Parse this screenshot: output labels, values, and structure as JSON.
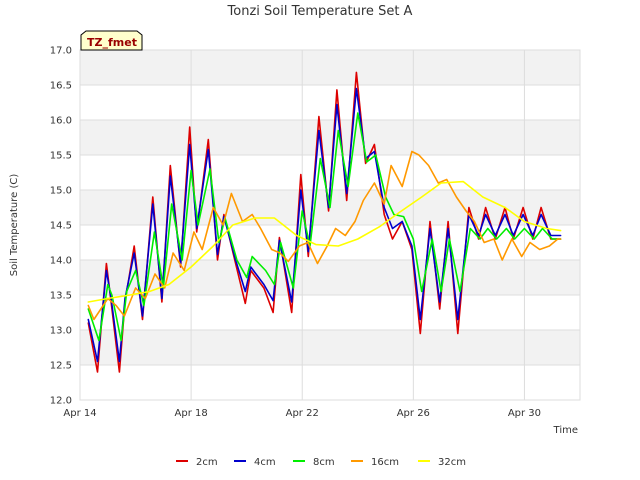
{
  "chart_data": {
    "type": "line",
    "title": "Tonzi Soil Temperature Set A",
    "xlabel": "Time",
    "ylabel": "Soil Temperature (C)",
    "badge": "TZ_fmet",
    "xlim": [
      0,
      18
    ],
    "ylim": [
      12.0,
      17.0
    ],
    "xticks": [
      {
        "x": 0,
        "label": "Apr 14"
      },
      {
        "x": 4,
        "label": "Apr 18"
      },
      {
        "x": 8,
        "label": "Apr 22"
      },
      {
        "x": 12,
        "label": "Apr 26"
      },
      {
        "x": 16,
        "label": "Apr 30"
      }
    ],
    "yticks": [
      "12.0",
      "12.5",
      "13.0",
      "13.5",
      "14.0",
      "14.5",
      "15.0",
      "15.5",
      "16.0",
      "16.5",
      "17.0"
    ],
    "grid": true,
    "legend_position": "bottom",
    "series": [
      {
        "name": "2cm",
        "color": "#dd0000",
        "x": [
          0.3,
          0.63,
          0.95,
          1.12,
          1.42,
          1.62,
          1.95,
          2.25,
          2.62,
          2.95,
          3.25,
          3.62,
          3.95,
          4.2,
          4.62,
          4.95,
          5.18,
          5.6,
          5.95,
          6.15,
          6.62,
          6.95,
          7.18,
          7.62,
          7.95,
          8.22,
          8.6,
          8.95,
          9.25,
          9.6,
          9.95,
          10.28,
          10.6,
          10.95,
          11.25,
          11.6,
          11.95,
          12.25,
          12.6,
          12.95,
          13.25,
          13.6,
          14.0,
          14.35,
          14.6,
          14.95,
          15.3,
          15.6,
          15.95,
          16.3,
          16.6,
          16.95,
          17.3
        ],
        "y": [
          13.1,
          12.4,
          13.95,
          13.4,
          12.4,
          13.4,
          14.2,
          13.15,
          14.9,
          13.4,
          15.35,
          13.9,
          15.9,
          14.4,
          15.72,
          14.0,
          14.65,
          13.95,
          13.38,
          13.85,
          13.6,
          13.25,
          14.32,
          13.25,
          15.22,
          14.05,
          16.05,
          14.7,
          16.43,
          14.85,
          16.68,
          15.38,
          15.65,
          14.65,
          14.3,
          14.55,
          14.15,
          12.95,
          14.55,
          13.3,
          14.55,
          12.95,
          14.75,
          14.3,
          14.75,
          14.3,
          14.75,
          14.3,
          14.75,
          14.3,
          14.75,
          14.3,
          14.3
        ]
      },
      {
        "name": "4cm",
        "color": "#0000cc",
        "x": [
          0.3,
          0.63,
          0.95,
          1.12,
          1.42,
          1.62,
          1.95,
          2.25,
          2.62,
          2.95,
          3.25,
          3.62,
          3.95,
          4.2,
          4.62,
          4.95,
          5.18,
          5.6,
          5.95,
          6.15,
          6.62,
          6.95,
          7.18,
          7.62,
          7.95,
          8.22,
          8.6,
          8.95,
          9.25,
          9.6,
          9.95,
          10.28,
          10.6,
          10.95,
          11.25,
          11.6,
          11.95,
          12.25,
          12.6,
          12.95,
          13.25,
          13.6,
          14.0,
          14.35,
          14.6,
          14.95,
          15.3,
          15.6,
          15.95,
          16.3,
          16.6,
          16.95,
          17.3
        ],
        "y": [
          13.15,
          12.55,
          13.85,
          13.45,
          12.55,
          13.45,
          14.1,
          13.2,
          14.8,
          13.45,
          15.2,
          13.95,
          15.65,
          14.45,
          15.58,
          14.08,
          14.62,
          14.0,
          13.55,
          13.9,
          13.65,
          13.42,
          14.28,
          13.4,
          15.0,
          14.12,
          15.85,
          14.75,
          16.22,
          14.95,
          16.45,
          15.45,
          15.55,
          14.75,
          14.45,
          14.55,
          14.2,
          13.15,
          14.45,
          13.4,
          14.45,
          13.15,
          14.65,
          14.35,
          14.65,
          14.35,
          14.65,
          14.35,
          14.65,
          14.35,
          14.65,
          14.35,
          14.35
        ]
      },
      {
        "name": "8cm",
        "color": "#00ee00",
        "x": [
          0.3,
          0.68,
          1.0,
          1.15,
          1.48,
          1.68,
          2.0,
          2.3,
          2.68,
          3.0,
          3.3,
          3.68,
          4.0,
          4.25,
          4.68,
          5.0,
          5.22,
          5.65,
          6.0,
          6.2,
          6.68,
          7.0,
          7.22,
          7.68,
          8.0,
          8.28,
          8.65,
          9.0,
          9.3,
          9.65,
          10.0,
          10.32,
          10.65,
          11.0,
          11.3,
          11.65,
          12.0,
          12.3,
          12.68,
          13.0,
          13.3,
          13.68,
          14.05,
          14.4,
          14.68,
          15.0,
          15.35,
          15.65,
          16.0,
          16.35,
          16.65,
          17.0,
          17.3
        ],
        "y": [
          13.3,
          12.85,
          13.65,
          13.5,
          12.85,
          13.55,
          13.85,
          13.35,
          14.4,
          13.6,
          14.8,
          14.0,
          15.28,
          14.5,
          15.3,
          14.25,
          14.6,
          14.0,
          13.75,
          14.05,
          13.85,
          13.65,
          14.25,
          13.6,
          14.7,
          14.2,
          15.45,
          14.75,
          15.85,
          15.05,
          16.1,
          15.4,
          15.5,
          14.9,
          14.65,
          14.62,
          14.3,
          13.55,
          14.3,
          13.55,
          14.3,
          13.55,
          14.45,
          14.3,
          14.45,
          14.3,
          14.45,
          14.3,
          14.45,
          14.3,
          14.45,
          14.3,
          14.3
        ]
      },
      {
        "name": "16cm",
        "color": "#ff9900",
        "x": [
          0.3,
          0.5,
          1.0,
          1.3,
          1.6,
          2.0,
          2.35,
          2.7,
          3.05,
          3.35,
          3.75,
          4.1,
          4.4,
          4.8,
          5.15,
          5.45,
          5.85,
          6.2,
          6.5,
          6.9,
          7.2,
          7.5,
          7.9,
          8.2,
          8.55,
          8.9,
          9.2,
          9.55,
          9.9,
          10.2,
          10.6,
          10.95,
          11.2,
          11.6,
          11.95,
          12.2,
          12.55,
          12.9,
          13.2,
          13.55,
          13.9,
          14.2,
          14.55,
          14.9,
          15.2,
          15.55,
          15.9,
          16.2,
          16.55,
          16.9,
          17.2,
          17.3
        ],
        "y": [
          13.35,
          13.15,
          13.45,
          13.35,
          13.2,
          13.6,
          13.45,
          13.8,
          13.6,
          14.1,
          13.85,
          14.4,
          14.15,
          14.75,
          14.5,
          14.95,
          14.55,
          14.65,
          14.45,
          14.15,
          14.1,
          13.98,
          14.2,
          14.25,
          13.95,
          14.2,
          14.45,
          14.35,
          14.55,
          14.85,
          15.1,
          14.8,
          15.35,
          15.05,
          15.55,
          15.5,
          15.35,
          15.1,
          15.15,
          14.9,
          14.7,
          14.55,
          14.25,
          14.3,
          14.0,
          14.3,
          14.05,
          14.25,
          14.15,
          14.2,
          14.3,
          14.3
        ]
      },
      {
        "name": "32cm",
        "color": "#ffff00",
        "x": [
          0.3,
          1.0,
          1.8,
          2.5,
          3.2,
          4.0,
          4.8,
          5.5,
          6.3,
          7.0,
          7.8,
          8.5,
          9.3,
          10.0,
          10.8,
          11.5,
          12.3,
          13.0,
          13.8,
          14.5,
          15.3,
          16.0,
          16.8,
          17.3
        ],
        "y": [
          13.4,
          13.45,
          13.5,
          13.55,
          13.65,
          13.9,
          14.2,
          14.5,
          14.6,
          14.6,
          14.35,
          14.22,
          14.2,
          14.3,
          14.48,
          14.68,
          14.9,
          15.1,
          15.12,
          14.9,
          14.75,
          14.55,
          14.45,
          14.42
        ]
      }
    ]
  }
}
